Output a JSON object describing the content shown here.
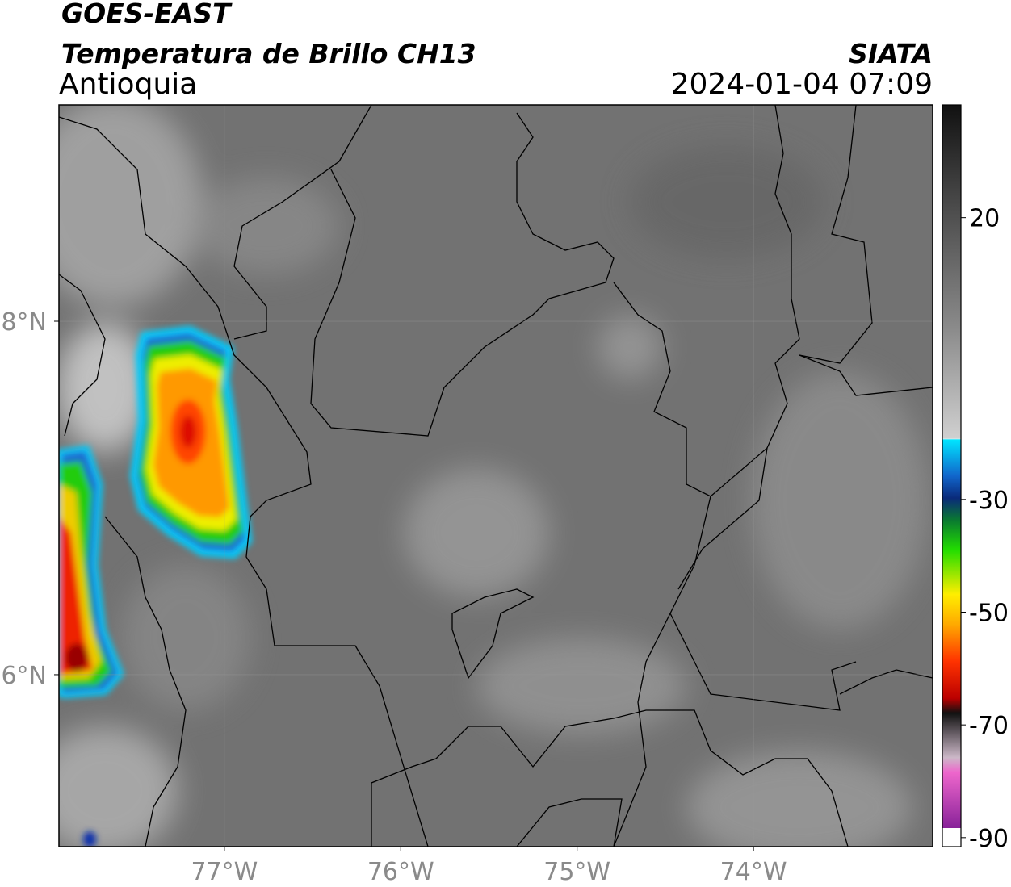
{
  "header": {
    "title": "GOES-EAST",
    "subtitle": "Temperatura de Brillo CH13",
    "region": "Antioquia",
    "source": "SIATA",
    "datetime": "2024-01-04 07:09"
  },
  "map": {
    "xlim": [
      -77.938,
      -72.984
    ],
    "ylim": [
      5.027,
      9.224
    ],
    "xticks": [
      {
        "value": -77,
        "label": "77°W"
      },
      {
        "value": -76,
        "label": "76°W"
      },
      {
        "value": -75,
        "label": "75°W"
      },
      {
        "value": -74,
        "label": "74°W"
      }
    ],
    "yticks": [
      {
        "value": 8,
        "label": "8°N"
      },
      {
        "value": 6,
        "label": "6°N"
      }
    ],
    "grid": true
  },
  "colorbar": {
    "lim": [
      -91.6,
      40
    ],
    "ticks": [
      20,
      -30,
      -50,
      -70,
      -90
    ]
  }
}
